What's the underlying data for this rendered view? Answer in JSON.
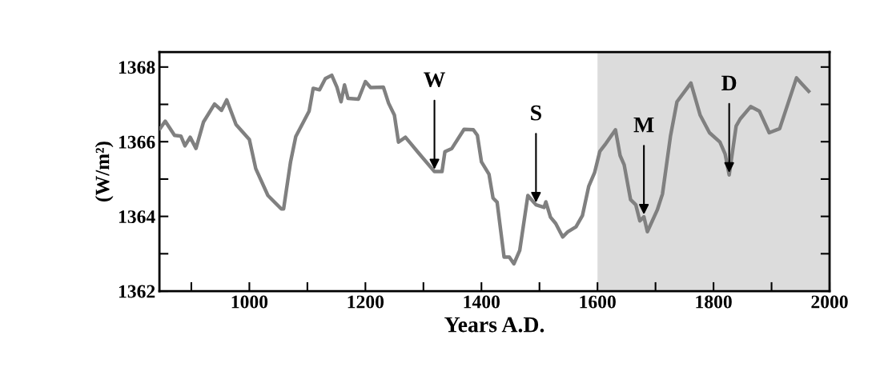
{
  "chart_data": {
    "type": "line",
    "xlabel": "Years A.D.",
    "ylabel": "(W/m²)",
    "x": [
      846,
      855,
      871,
      882,
      889,
      898,
      908,
      921,
      940,
      952,
      961,
      977,
      1000,
      1011,
      1032,
      1055,
      1059,
      1071,
      1080,
      1103,
      1110,
      1121,
      1131,
      1142,
      1151,
      1158,
      1164,
      1170,
      1188,
      1200,
      1209,
      1231,
      1240,
      1250,
      1257,
      1269,
      1291,
      1319,
      1332,
      1337,
      1349,
      1370,
      1386,
      1393,
      1400,
      1413,
      1420,
      1427,
      1439,
      1448,
      1456,
      1466,
      1480,
      1494,
      1508,
      1511,
      1519,
      1528,
      1540,
      1549,
      1563,
      1574,
      1585,
      1595,
      1604,
      1613,
      1631,
      1639,
      1646,
      1657,
      1666,
      1673,
      1680,
      1686,
      1703,
      1712,
      1726,
      1737,
      1761,
      1777,
      1793,
      1811,
      1820,
      1827,
      1839,
      1846,
      1864,
      1879,
      1896,
      1914,
      1943,
      1951,
      1964
    ],
    "series": [
      {
        "color": "#808080",
        "values": [
          1366.35,
          1366.55,
          1366.17,
          1366.15,
          1365.89,
          1366.12,
          1365.82,
          1366.53,
          1367.01,
          1366.84,
          1367.12,
          1366.46,
          1366.06,
          1365.28,
          1364.56,
          1364.2,
          1364.2,
          1365.46,
          1366.14,
          1366.82,
          1367.43,
          1367.39,
          1367.69,
          1367.78,
          1367.46,
          1367.07,
          1367.52,
          1367.16,
          1367.14,
          1367.61,
          1367.45,
          1367.46,
          1367.03,
          1366.71,
          1365.99,
          1366.12,
          1365.71,
          1365.2,
          1365.2,
          1365.73,
          1365.82,
          1366.33,
          1366.32,
          1366.17,
          1365.46,
          1365.13,
          1364.49,
          1364.38,
          1362.91,
          1362.91,
          1362.73,
          1363.09,
          1364.56,
          1364.31,
          1364.24,
          1364.39,
          1363.98,
          1363.81,
          1363.45,
          1363.59,
          1363.72,
          1364.02,
          1364.81,
          1365.17,
          1365.74,
          1365.92,
          1366.32,
          1365.63,
          1365.38,
          1364.45,
          1364.31,
          1363.88,
          1363.99,
          1363.59,
          1364.17,
          1364.6,
          1366.17,
          1367.07,
          1367.57,
          1366.71,
          1366.24,
          1365.99,
          1365.67,
          1365.11,
          1366.42,
          1366.61,
          1366.94,
          1366.82,
          1366.24,
          1366.35,
          1367.71,
          1367.57,
          1367.35
        ]
      }
    ],
    "xlim": [
      845,
      2000
    ],
    "xticks": [
      {
        "value": 900,
        "label": null
      },
      1000,
      {
        "value": 1100,
        "label": null
      },
      1200,
      {
        "value": 1300,
        "label": null
      },
      1400,
      {
        "value": 1500,
        "label": null
      },
      1600,
      {
        "value": 1700,
        "label": null
      },
      1800,
      {
        "value": 1900,
        "label": null
      },
      2000
    ],
    "ylim": [
      1362,
      1368.4
    ],
    "yticks": [
      1362,
      {
        "value": 1363,
        "label": null
      },
      1364,
      {
        "value": 1365,
        "label": null
      },
      1366,
      {
        "value": 1367,
        "label": null
      },
      1368
    ],
    "bands": [
      {
        "axis": "x",
        "from": 1600,
        "to": 2000,
        "color": "#dcdcdc"
      }
    ],
    "annotations": [
      {
        "text": "W",
        "x": 1319,
        "y": 1365.2
      },
      {
        "text": "S",
        "x": 1494,
        "y": 1364.31
      },
      {
        "text": "M",
        "x": 1680,
        "y": 1363.99
      },
      {
        "text": "D",
        "x": 1827,
        "y": 1365.11
      }
    ],
    "grid": false,
    "legend": false,
    "marker": "none",
    "line_style": "solid"
  }
}
